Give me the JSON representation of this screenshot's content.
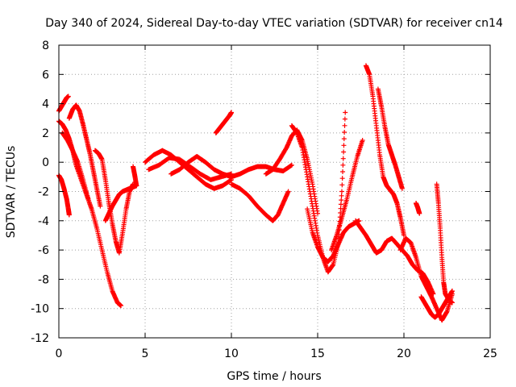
{
  "chart_data": {
    "type": "scatter",
    "title": "Day 340 of 2024, Sidereal Day-to-day VTEC variation (SDTVAR) for receiver cn14",
    "xlabel": "GPS time / hours",
    "ylabel": "SDTVAR / TECUs",
    "xlim": [
      0,
      25
    ],
    "ylim": [
      -12,
      8
    ],
    "xticks": [
      0,
      5,
      10,
      15,
      20,
      25
    ],
    "yticks": [
      -12,
      -10,
      -8,
      -6,
      -4,
      -2,
      0,
      2,
      4,
      6,
      8
    ],
    "grid": true,
    "marker": "+",
    "color": "#ff0000",
    "series": [
      {
        "name": "s1",
        "x": [
          0.0,
          0.2,
          0.4,
          0.6,
          0.8,
          1.0,
          1.3,
          1.6,
          1.9,
          2.2,
          2.5,
          2.8,
          3.1,
          3.4,
          3.6
        ],
        "y": [
          2.8,
          2.6,
          2.2,
          1.6,
          0.8,
          -0.2,
          -1.2,
          -2.2,
          -3.2,
          -4.5,
          -6.0,
          -7.5,
          -8.8,
          -9.6,
          -9.8
        ]
      },
      {
        "name": "s2",
        "x": [
          0.0,
          0.15,
          0.3,
          0.45,
          0.55
        ],
        "y": [
          3.5,
          3.8,
          4.1,
          4.4,
          4.5
        ]
      },
      {
        "name": "s3",
        "x": [
          0.0,
          0.15,
          0.3,
          0.45,
          0.55,
          0.6
        ],
        "y": [
          -0.9,
          -1.2,
          -1.8,
          -2.5,
          -3.2,
          -3.6
        ]
      },
      {
        "name": "s4",
        "x": [
          0.6,
          0.8,
          1.0,
          1.2,
          1.4,
          1.6,
          1.8,
          2.0,
          2.2,
          2.4
        ],
        "y": [
          3.0,
          3.6,
          3.9,
          3.5,
          2.6,
          1.6,
          0.6,
          -0.6,
          -1.8,
          -3.0
        ]
      },
      {
        "name": "s5",
        "x": [
          0.2,
          0.5,
          0.8,
          1.1,
          1.4,
          1.7
        ],
        "y": [
          2.0,
          1.5,
          0.8,
          0.0,
          -1.2,
          -2.5
        ]
      },
      {
        "name": "s6",
        "x": [
          2.1,
          2.3,
          2.5,
          2.7,
          2.9,
          3.1,
          3.3,
          3.5,
          3.7,
          3.9,
          4.1,
          4.3
        ],
        "y": [
          0.8,
          0.6,
          0.2,
          -1.2,
          -2.8,
          -4.2,
          -5.4,
          -6.2,
          -4.8,
          -3.2,
          -2.0,
          -1.5
        ]
      },
      {
        "name": "s7",
        "x": [
          2.7,
          2.9,
          3.1,
          3.3,
          3.5,
          3.7,
          3.9,
          4.1,
          4.3,
          4.5
        ],
        "y": [
          -4.0,
          -3.5,
          -3.0,
          -2.6,
          -2.2,
          -2.0,
          -1.9,
          -1.8,
          -1.7,
          -1.6
        ]
      },
      {
        "name": "s8",
        "x": [
          4.3,
          4.4,
          4.5
        ],
        "y": [
          -0.3,
          -0.9,
          -1.6
        ]
      },
      {
        "name": "s9",
        "x": [
          5.0,
          5.5,
          6.0,
          6.5,
          7.0,
          7.5,
          8.0,
          8.5,
          9.0,
          9.5,
          10.0
        ],
        "y": [
          0.0,
          0.5,
          0.8,
          0.5,
          0.0,
          -0.5,
          -1.0,
          -1.5,
          -1.8,
          -1.6,
          -1.2
        ]
      },
      {
        "name": "s10",
        "x": [
          5.2,
          5.8,
          6.4,
          7.0,
          7.6,
          8.2,
          8.8,
          9.4,
          10.0
        ],
        "y": [
          -0.5,
          -0.2,
          0.3,
          0.2,
          -0.3,
          -0.8,
          -1.2,
          -1.0,
          -0.8
        ]
      },
      {
        "name": "s11",
        "x": [
          6.5,
          7.0,
          7.5,
          8.0,
          8.5,
          9.0,
          9.5,
          10.0,
          10.5,
          11.0,
          11.5,
          12.0,
          12.5,
          13.0,
          13.5
        ],
        "y": [
          -0.8,
          -0.5,
          0.0,
          0.4,
          0.0,
          -0.5,
          -0.8,
          -1.0,
          -0.8,
          -0.5,
          -0.3,
          -0.3,
          -0.5,
          -0.6,
          -0.2
        ]
      },
      {
        "name": "s12",
        "x": [
          9.1,
          9.3,
          9.5,
          9.7,
          9.9,
          10.0
        ],
        "y": [
          2.0,
          2.3,
          2.6,
          2.9,
          3.2,
          3.4
        ]
      },
      {
        "name": "s13",
        "x": [
          10.0,
          10.5,
          11.0,
          11.5,
          12.0,
          12.4,
          12.7,
          13.0,
          13.3
        ],
        "y": [
          -1.5,
          -1.8,
          -2.3,
          -3.0,
          -3.6,
          -4.0,
          -3.6,
          -2.8,
          -2.0
        ]
      },
      {
        "name": "s14",
        "x": [
          12.0,
          12.4,
          12.8,
          13.2,
          13.5,
          13.8,
          14.1,
          14.4,
          14.7,
          15.0
        ],
        "y": [
          -0.8,
          -0.5,
          0.2,
          1.0,
          1.8,
          2.2,
          1.5,
          0.2,
          -1.5,
          -3.5
        ]
      },
      {
        "name": "s15",
        "x": [
          13.5,
          13.8,
          14.1,
          14.4,
          14.7,
          15.0,
          15.3,
          15.6,
          15.9,
          16.2,
          16.4,
          16.6
        ],
        "y": [
          2.5,
          2.0,
          1.0,
          -1.0,
          -3.0,
          -5.0,
          -6.5,
          -7.5,
          -7.0,
          -5.5,
          -2.0,
          3.4
        ]
      },
      {
        "name": "s16",
        "x": [
          14.4,
          14.7,
          15.0,
          15.3,
          15.6,
          15.9,
          16.2,
          16.5,
          16.8,
          17.1,
          17.4
        ],
        "y": [
          -3.2,
          -4.8,
          -5.8,
          -6.5,
          -6.8,
          -6.4,
          -5.6,
          -4.8,
          -4.4,
          -4.2,
          -4.0
        ]
      },
      {
        "name": "s17",
        "x": [
          15.8,
          16.1,
          16.4,
          16.7,
          17.0,
          17.3,
          17.6
        ],
        "y": [
          -6.0,
          -5.0,
          -3.8,
          -2.5,
          -1.0,
          0.4,
          1.5
        ]
      },
      {
        "name": "s18",
        "x": [
          17.2,
          17.5,
          17.8,
          18.1,
          18.4,
          18.7,
          19.0,
          19.3,
          19.6,
          19.9,
          20.2,
          20.5,
          20.8,
          21.1,
          21.4,
          21.7
        ],
        "y": [
          -4.0,
          -4.5,
          -5.0,
          -5.6,
          -6.2,
          -6.0,
          -5.4,
          -5.2,
          -5.6,
          -6.0,
          -6.4,
          -7.0,
          -7.4,
          -7.6,
          -8.2,
          -9.0
        ]
      },
      {
        "name": "s19",
        "x": [
          17.8,
          18.0,
          18.2,
          18.4,
          18.6,
          18.8,
          19.0,
          19.2,
          19.4,
          19.6,
          19.8,
          20.0
        ],
        "y": [
          6.6,
          6.0,
          4.5,
          2.5,
          0.5,
          -1.0,
          -1.6,
          -1.9,
          -2.2,
          -2.8,
          -3.8,
          -5.0
        ]
      },
      {
        "name": "s20",
        "x": [
          18.5,
          18.7,
          18.9,
          19.1,
          19.3,
          19.5,
          19.7,
          19.9
        ],
        "y": [
          5.0,
          3.8,
          2.4,
          1.2,
          0.5,
          -0.2,
          -1.0,
          -1.8
        ]
      },
      {
        "name": "s21",
        "x": [
          19.8,
          20.1,
          20.4,
          20.7,
          21.0,
          21.3,
          21.6,
          21.9,
          22.2,
          22.5,
          22.8
        ],
        "y": [
          -6.0,
          -5.2,
          -5.5,
          -6.5,
          -7.8,
          -8.5,
          -9.2,
          -10.0,
          -10.8,
          -10.2,
          -9.0
        ]
      },
      {
        "name": "s22",
        "x": [
          20.7,
          20.8,
          20.9
        ],
        "y": [
          -2.8,
          -3.1,
          -3.5
        ]
      },
      {
        "name": "s23",
        "x": [
          21.0,
          21.2,
          21.4,
          21.6,
          21.8,
          22.0,
          22.2,
          22.4,
          22.6,
          22.8
        ],
        "y": [
          -9.2,
          -9.6,
          -10.0,
          -10.4,
          -10.6,
          -10.4,
          -10.0,
          -9.6,
          -9.2,
          -8.8
        ]
      },
      {
        "name": "s24",
        "x": [
          21.9,
          22.0,
          22.1,
          22.2,
          22.3,
          22.4,
          22.6,
          22.8
        ],
        "y": [
          -1.5,
          -2.8,
          -4.5,
          -6.5,
          -8.2,
          -9.0,
          -9.4,
          -9.6
        ]
      }
    ]
  }
}
